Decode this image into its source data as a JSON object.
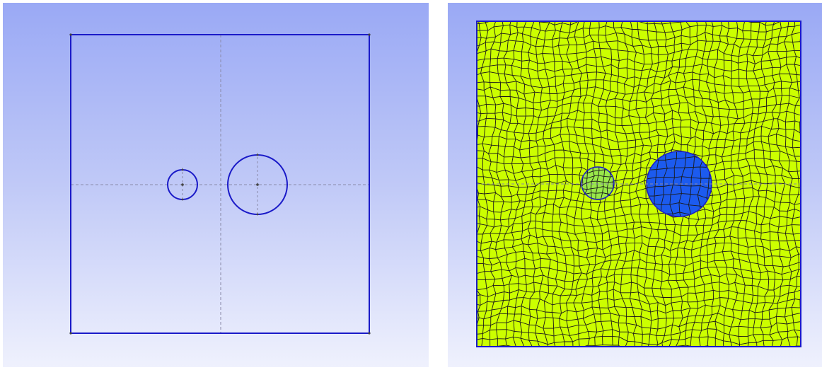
{
  "views": {
    "sketch": {
      "name": "geometry-sketch-view"
    },
    "mesh": {
      "name": "quad-mesh-view"
    }
  },
  "colors": {
    "background_top": "#9aa9f5",
    "background_bottom": "#eff1fd",
    "edge": "#1a1ac8",
    "construction_line": "#8a8aa8",
    "mesh_domain": "#ccff00",
    "mesh_small_inclusion": "#99e84a",
    "mesh_large_inclusion": "#1c5bef",
    "mesh_edges": "#1a1a1a"
  }
}
